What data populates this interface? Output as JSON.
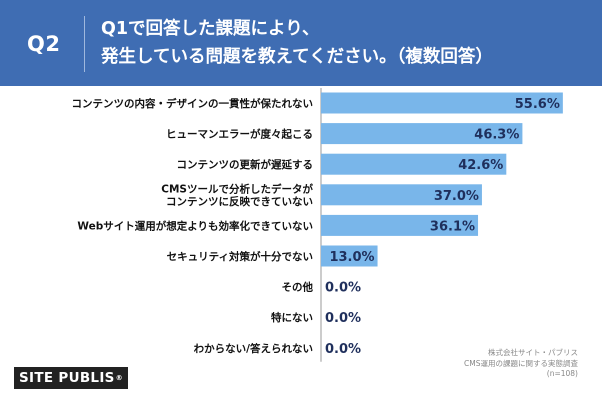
{
  "header": {
    "question_label": "Q2",
    "title_line1": "Q1で回答した課題により、",
    "title_line2": "発生している問題を教えてください。（複数回答）"
  },
  "footer": {
    "logo": "SITE PUBLIS",
    "logo_mark": "®",
    "source_line1": "株式会社サイト・パブリス",
    "source_line2": "CMS運用の課題に関する実態調査",
    "source_line3": "(n=108)"
  },
  "colors": {
    "header_bg": "#3f6db3",
    "bar": "#79b6ea",
    "axis": "#999999"
  },
  "chart_data": {
    "type": "bar",
    "orientation": "horizontal",
    "categories": [
      [
        "コンテンツの内容・デザインの一貫性が保たれない"
      ],
      [
        "ヒューマンエラーが度々起こる"
      ],
      [
        "コンテンツの更新が遅延する"
      ],
      [
        "CMSツールで分析したデータが",
        "コンテンツに反映できていない"
      ],
      [
        "Webサイト運用が想定よりも効率化できていない"
      ],
      [
        "セキュリティ対策が十分でない"
      ],
      [
        "その他"
      ],
      [
        "特にない"
      ],
      [
        "わからない/答えられない"
      ]
    ],
    "values": [
      55.6,
      46.3,
      42.6,
      37.0,
      36.1,
      13.0,
      0.0,
      0.0,
      0.0
    ],
    "value_labels": [
      "55.6%",
      "46.3%",
      "42.6%",
      "37.0%",
      "36.1%",
      "13.0%",
      "0.0%",
      "0.0%",
      "0.0%"
    ],
    "xlim": [
      0,
      60
    ],
    "grid": false,
    "legend": "none"
  }
}
